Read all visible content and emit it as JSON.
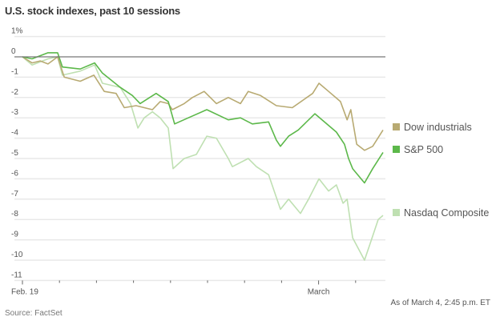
{
  "chart_data": {
    "type": "line",
    "title": "U.S. stock indexes, past 10 sessions",
    "ylim": [
      -11,
      1
    ],
    "yticks": [
      "1%",
      "0",
      "-1",
      "-2",
      "-3",
      "-4",
      "-5",
      "-6",
      "-7",
      "-8",
      "-9",
      "-10",
      "-11"
    ],
    "ytick_values": [
      1,
      0,
      -1,
      -2,
      -3,
      -4,
      -5,
      -6,
      -7,
      -8,
      -9,
      -10,
      -11
    ],
    "x_unit": "trading sessions since Feb. 19 open",
    "xlim": [
      0,
      9.8
    ],
    "xtick_labels": [
      {
        "session": 0,
        "label": "Feb. 19"
      },
      {
        "session": 8,
        "label": "March"
      }
    ],
    "sessions": 10,
    "grid": true,
    "legend_position": "right",
    "series": [
      {
        "name": "Dow industrials",
        "color": "#b8aa72",
        "points": [
          [
            0,
            0
          ],
          [
            0.26,
            -0.3
          ],
          [
            0.48,
            -0.2
          ],
          [
            0.69,
            -0.35
          ],
          [
            0.95,
            0
          ],
          [
            1.13,
            -1.0
          ],
          [
            1.56,
            -1.2
          ],
          [
            1.93,
            -0.9
          ],
          [
            2.21,
            -1.7
          ],
          [
            2.53,
            -1.8
          ],
          [
            2.75,
            -2.5
          ],
          [
            3.07,
            -2.4
          ],
          [
            3.51,
            -2.6
          ],
          [
            3.72,
            -2.2
          ],
          [
            3.94,
            -2.3
          ],
          [
            4.05,
            -2.6
          ],
          [
            4.37,
            -2.3
          ],
          [
            4.59,
            -2.0
          ],
          [
            4.91,
            -1.7
          ],
          [
            5.24,
            -2.3
          ],
          [
            5.56,
            -2.0
          ],
          [
            5.89,
            -2.3
          ],
          [
            6.1,
            -1.7
          ],
          [
            6.43,
            -1.9
          ],
          [
            6.86,
            -2.4
          ],
          [
            7.29,
            -2.5
          ],
          [
            7.84,
            -1.8
          ],
          [
            8.01,
            -1.3
          ],
          [
            8.27,
            -1.7
          ],
          [
            8.59,
            -2.2
          ],
          [
            8.77,
            -3.1
          ],
          [
            8.87,
            -2.6
          ],
          [
            9.03,
            -4.3
          ],
          [
            9.24,
            -4.6
          ],
          [
            9.46,
            -4.4
          ],
          [
            9.74,
            -3.6
          ]
        ]
      },
      {
        "name": "S&P 500",
        "color": "#5cb84a",
        "points": [
          [
            0,
            0
          ],
          [
            0.26,
            -0.1
          ],
          [
            0.69,
            0.2
          ],
          [
            0.95,
            0.2
          ],
          [
            1.08,
            -0.5
          ],
          [
            1.56,
            -0.6
          ],
          [
            1.95,
            -0.3
          ],
          [
            2.16,
            -0.8
          ],
          [
            2.64,
            -1.5
          ],
          [
            2.97,
            -1.9
          ],
          [
            3.18,
            -2.3
          ],
          [
            3.61,
            -1.8
          ],
          [
            3.94,
            -2.2
          ],
          [
            4.11,
            -3.3
          ],
          [
            4.48,
            -3.0
          ],
          [
            4.98,
            -2.6
          ],
          [
            5.56,
            -3.1
          ],
          [
            5.89,
            -3.0
          ],
          [
            6.21,
            -3.3
          ],
          [
            6.65,
            -3.2
          ],
          [
            6.86,
            -4.1
          ],
          [
            6.97,
            -4.4
          ],
          [
            7.19,
            -3.9
          ],
          [
            7.45,
            -3.6
          ],
          [
            7.9,
            -2.8
          ],
          [
            8.48,
            -3.7
          ],
          [
            8.7,
            -4.3
          ],
          [
            8.81,
            -5.0
          ],
          [
            8.92,
            -5.5
          ],
          [
            9.24,
            -6.2
          ],
          [
            9.46,
            -5.5
          ],
          [
            9.74,
            -4.7
          ]
        ]
      },
      {
        "name": "Nasdaq Composite",
        "color": "#bfe0b2",
        "points": [
          [
            0,
            0
          ],
          [
            0.26,
            -0.4
          ],
          [
            0.69,
            -0.1
          ],
          [
            0.95,
            0
          ],
          [
            1.08,
            -0.9
          ],
          [
            1.56,
            -0.7
          ],
          [
            1.95,
            -0.4
          ],
          [
            2.16,
            -1.3
          ],
          [
            2.64,
            -1.5
          ],
          [
            2.92,
            -2.3
          ],
          [
            3.12,
            -3.5
          ],
          [
            3.29,
            -3.0
          ],
          [
            3.51,
            -2.7
          ],
          [
            3.72,
            -3.0
          ],
          [
            3.94,
            -3.5
          ],
          [
            4.07,
            -5.5
          ],
          [
            4.37,
            -5.0
          ],
          [
            4.7,
            -4.8
          ],
          [
            4.98,
            -3.9
          ],
          [
            5.24,
            -4.0
          ],
          [
            5.56,
            -5.0
          ],
          [
            5.67,
            -5.4
          ],
          [
            6.1,
            -5.0
          ],
          [
            6.32,
            -5.4
          ],
          [
            6.65,
            -5.8
          ],
          [
            6.97,
            -7.5
          ],
          [
            7.19,
            -7.0
          ],
          [
            7.51,
            -7.7
          ],
          [
            7.73,
            -7.0
          ],
          [
            8.01,
            -6.0
          ],
          [
            8.27,
            -6.6
          ],
          [
            8.48,
            -6.3
          ],
          [
            8.66,
            -7.2
          ],
          [
            8.77,
            -7.0
          ],
          [
            8.92,
            -8.9
          ],
          [
            9.24,
            -10.0
          ],
          [
            9.39,
            -9.2
          ],
          [
            9.61,
            -8.0
          ],
          [
            9.74,
            -7.8
          ]
        ]
      }
    ]
  },
  "footer": {
    "as_of": "As of March 4, 2:45 p.m. ET",
    "source": "Source: FactSet"
  }
}
